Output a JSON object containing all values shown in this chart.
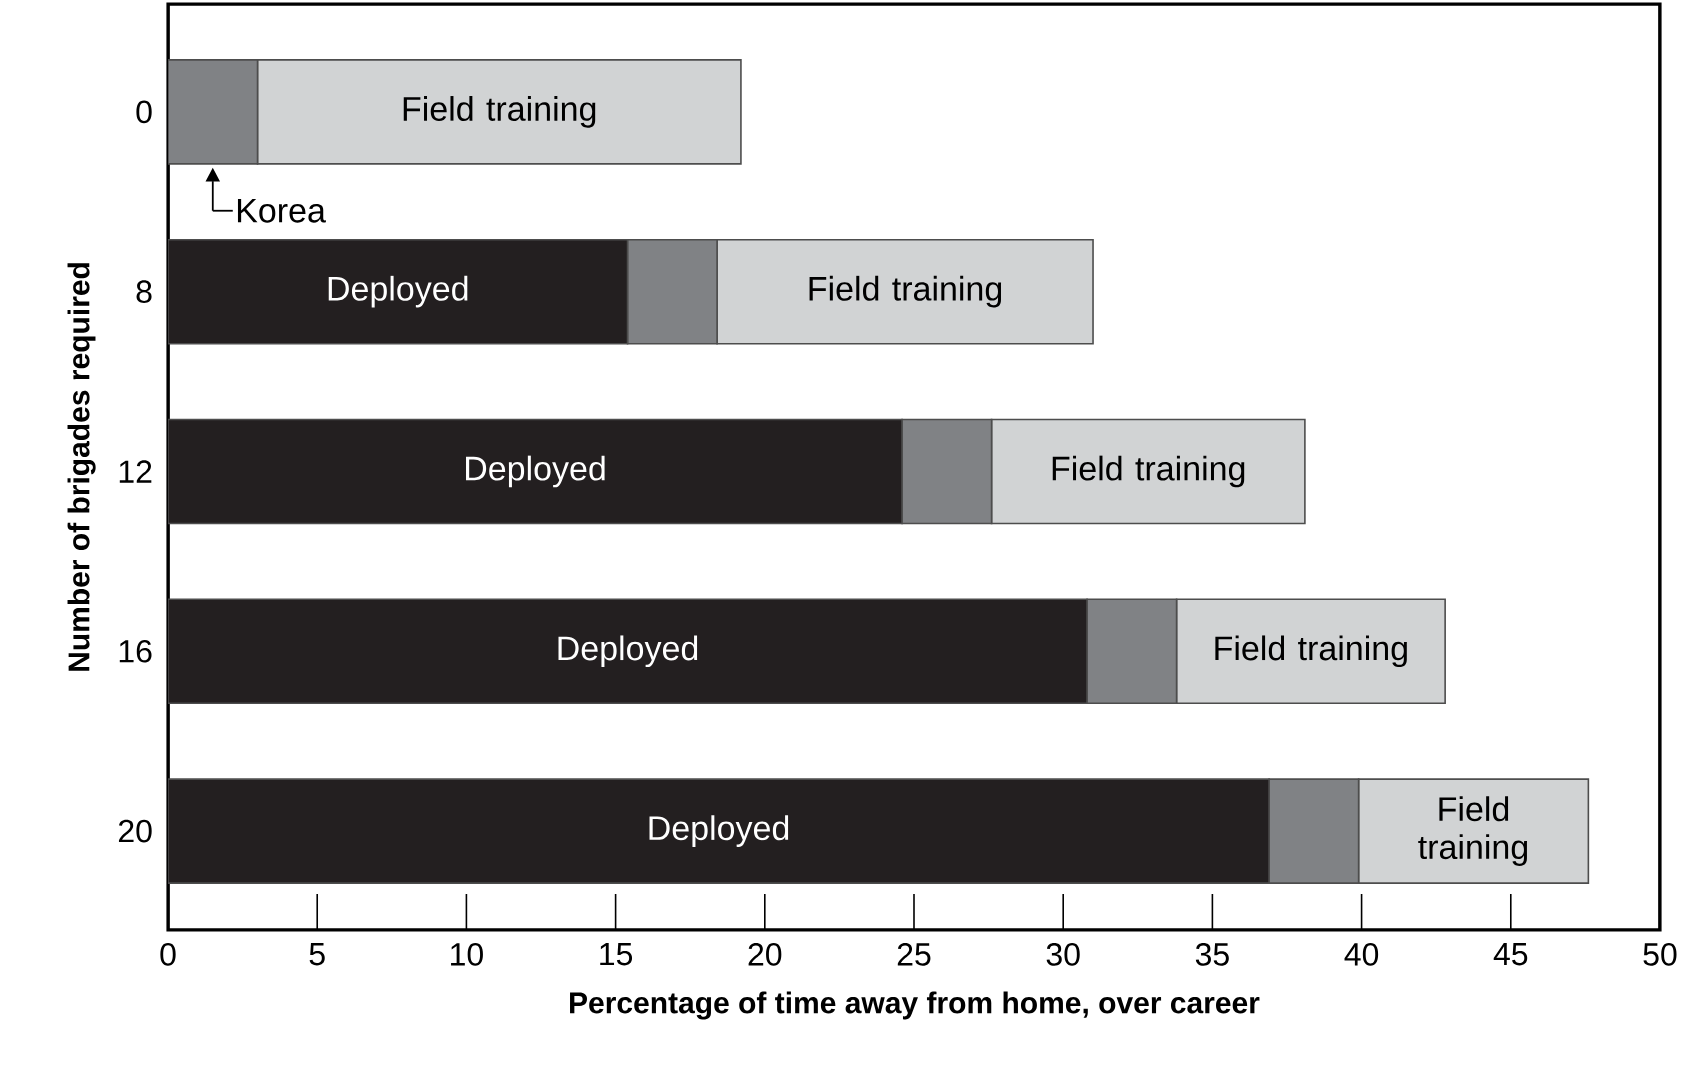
{
  "chart_data": {
    "type": "bar",
    "orientation": "horizontal",
    "stacked": true,
    "xlabel": "Percentage of time away from home, over career",
    "ylabel": "Number of brigades required",
    "categories": [
      "0",
      "8",
      "12",
      "16",
      "20"
    ],
    "series": [
      {
        "name": "Deployed",
        "color": "#231f20",
        "values": [
          0,
          15.4,
          24.6,
          30.8,
          36.9
        ]
      },
      {
        "name": "Korea",
        "color": "#808285",
        "values": [
          3.0,
          3.0,
          3.0,
          3.0,
          3.0
        ]
      },
      {
        "name": "Field training",
        "color": "#d1d3d4",
        "values": [
          16.2,
          12.6,
          10.5,
          9.0,
          7.7
        ]
      }
    ],
    "xlim": [
      0,
      50
    ],
    "xticks": [
      0,
      5,
      10,
      15,
      20,
      25,
      30,
      35,
      40,
      45,
      50
    ],
    "grid": false
  }
}
